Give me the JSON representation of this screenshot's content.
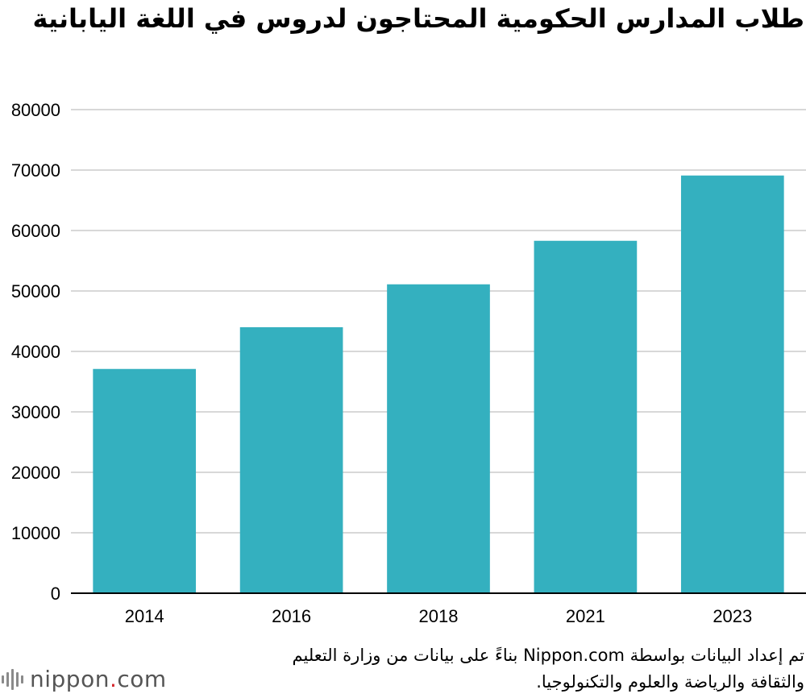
{
  "chart_data": {
    "type": "bar",
    "title": "طلاب المدارس الحكومية المحتاجون لدروس في اللغة اليابانية",
    "categories": [
      "2014",
      "2016",
      "2018",
      "2021",
      "2023"
    ],
    "values": [
      37100,
      44000,
      51100,
      58300,
      69100
    ],
    "ylim": [
      0,
      80000
    ],
    "yticks": [
      0,
      10000,
      20000,
      30000,
      40000,
      50000,
      60000,
      70000,
      80000
    ],
    "xlabel": "",
    "ylabel": "",
    "grid": true,
    "bar_color": "#34b0bf"
  },
  "source_text": "تم إعداد البيانات بواسطة Nippon.com بناءً على بيانات من وزارة التعليم والثقافة والرياضة والعلوم والتكنولوجيا.",
  "logo": {
    "name": "nippon",
    "dot": ".",
    "domain": "com"
  },
  "colors": {
    "grid": "#cccccc",
    "axis": "#000000",
    "logo_dot": "#d4252b",
    "logo_text": "#555555"
  }
}
